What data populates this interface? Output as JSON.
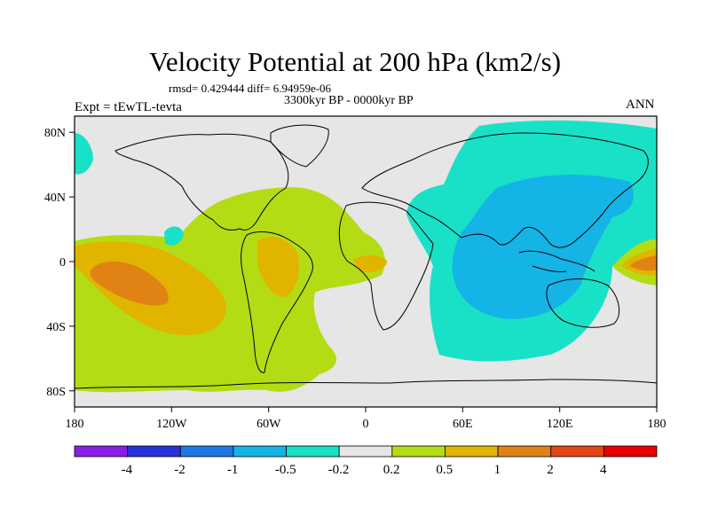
{
  "title": "Velocity Potential at 200 hPa (km2/s)",
  "stats": "rmsd= 0.429444 diff= 6.94959e-06",
  "period": "3300kyr BP - 0000kyr BP",
  "experiment": "Expt = tEwTL-tevta",
  "season": "ANN",
  "lat_ticks": [
    "80N",
    "40N",
    "0",
    "40S",
    "80S"
  ],
  "lon_ticks": [
    "180",
    "120W",
    "60W",
    "0",
    "60E",
    "120E",
    "180"
  ],
  "colorbar": {
    "labels": [
      "-4",
      "-2",
      "-1",
      "-0.5",
      "-0.2",
      "0.2",
      "0.5",
      "1",
      "2",
      "4"
    ],
    "colors": [
      "#8a1ee6",
      "#2832d8",
      "#1e78e6",
      "#14b4e6",
      "#19e1c8",
      "#e6e6e6",
      "#b4dc14",
      "#e1b400",
      "#e18214",
      "#e14614",
      "#e60000"
    ]
  },
  "regions": {
    "ocean_bg": "#e6e6e6",
    "neg_weak": "#19e1c8",
    "neg_mid": "#14b4e6",
    "pos_weak": "#b4dc14",
    "pos_mid": "#e1b400",
    "pos_strong": "#e18214"
  }
}
